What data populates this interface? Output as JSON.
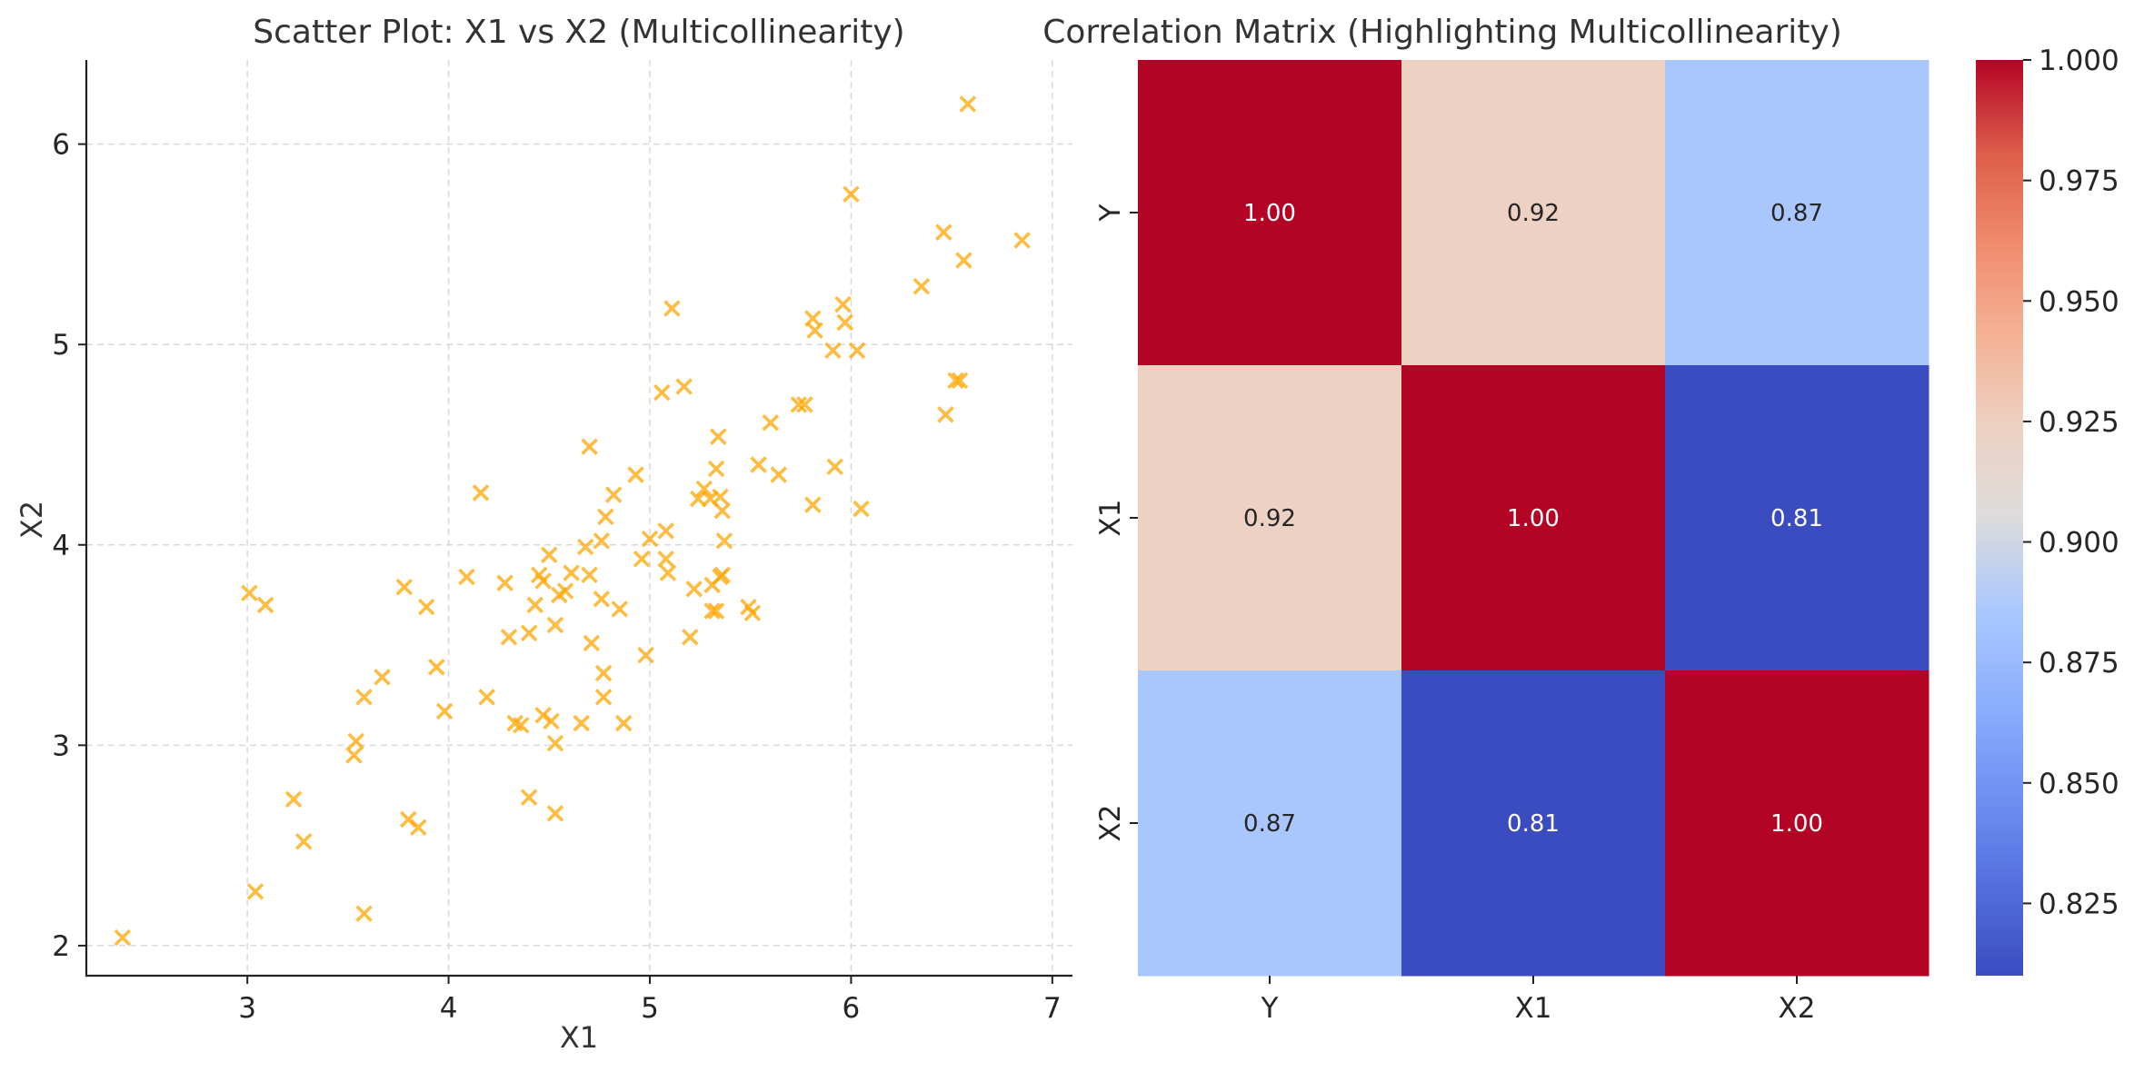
{
  "chart_data": [
    {
      "type": "scatter",
      "title": "Scatter Plot: X1 vs X2 (Multicollinearity)",
      "xlabel": "X1",
      "ylabel": "X2",
      "xlim": [
        2.2,
        7.1
      ],
      "ylim": [
        1.85,
        6.42
      ],
      "xticks": [
        3,
        4,
        5,
        6,
        7
      ],
      "yticks": [
        2,
        3,
        4,
        5,
        6
      ],
      "grid": true,
      "marker": "x",
      "color": "#FFA500",
      "points": [
        [
          2.38,
          2.04
        ],
        [
          3.04,
          2.27
        ],
        [
          3.58,
          2.16
        ],
        [
          3.23,
          2.73
        ],
        [
          3.28,
          2.52
        ],
        [
          3.53,
          2.95
        ],
        [
          3.54,
          3.02
        ],
        [
          3.58,
          3.24
        ],
        [
          3.67,
          3.34
        ],
        [
          3.01,
          3.76
        ],
        [
          3.09,
          3.7
        ],
        [
          3.78,
          3.79
        ],
        [
          3.8,
          2.63
        ],
        [
          3.85,
          2.59
        ],
        [
          3.89,
          3.69
        ],
        [
          3.94,
          3.39
        ],
        [
          3.98,
          3.17
        ],
        [
          4.09,
          3.84
        ],
        [
          4.16,
          4.26
        ],
        [
          4.19,
          3.24
        ],
        [
          4.28,
          3.81
        ],
        [
          4.3,
          3.54
        ],
        [
          4.33,
          3.11
        ],
        [
          4.36,
          3.1
        ],
        [
          4.4,
          3.56
        ],
        [
          4.4,
          2.74
        ],
        [
          4.43,
          3.7
        ],
        [
          4.45,
          3.85
        ],
        [
          4.47,
          3.15
        ],
        [
          4.47,
          3.82
        ],
        [
          4.5,
          3.95
        ],
        [
          4.51,
          3.12
        ],
        [
          4.53,
          3.6
        ],
        [
          4.53,
          2.66
        ],
        [
          4.53,
          3.01
        ],
        [
          4.55,
          3.75
        ],
        [
          4.58,
          3.77
        ],
        [
          4.61,
          3.86
        ],
        [
          4.66,
          3.11
        ],
        [
          4.68,
          3.99
        ],
        [
          4.7,
          4.49
        ],
        [
          4.7,
          3.85
        ],
        [
          4.71,
          3.51
        ],
        [
          4.76,
          4.02
        ],
        [
          4.76,
          3.73
        ],
        [
          4.77,
          3.36
        ],
        [
          4.77,
          3.24
        ],
        [
          4.78,
          4.14
        ],
        [
          4.82,
          4.25
        ],
        [
          4.85,
          3.68
        ],
        [
          4.87,
          3.11
        ],
        [
          4.93,
          4.35
        ],
        [
          4.96,
          3.93
        ],
        [
          4.98,
          3.45
        ],
        [
          5.0,
          4.03
        ],
        [
          5.06,
          4.76
        ],
        [
          5.08,
          4.07
        ],
        [
          5.08,
          3.93
        ],
        [
          5.09,
          3.86
        ],
        [
          5.11,
          5.18
        ],
        [
          5.17,
          4.79
        ],
        [
          5.2,
          3.54
        ],
        [
          5.22,
          3.78
        ],
        [
          5.24,
          4.23
        ],
        [
          5.27,
          4.28
        ],
        [
          5.3,
          4.23
        ],
        [
          5.31,
          3.8
        ],
        [
          5.31,
          3.67
        ],
        [
          5.33,
          3.67
        ],
        [
          5.33,
          4.38
        ],
        [
          5.34,
          4.54
        ],
        [
          5.35,
          3.84
        ],
        [
          5.35,
          4.24
        ],
        [
          5.36,
          3.85
        ],
        [
          5.36,
          4.17
        ],
        [
          5.37,
          4.02
        ],
        [
          5.49,
          3.69
        ],
        [
          5.51,
          3.66
        ],
        [
          5.54,
          4.4
        ],
        [
          5.6,
          4.61
        ],
        [
          5.64,
          4.35
        ],
        [
          5.74,
          4.7
        ],
        [
          5.77,
          4.7
        ],
        [
          5.81,
          5.13
        ],
        [
          5.81,
          4.2
        ],
        [
          5.82,
          5.07
        ],
        [
          5.91,
          4.97
        ],
        [
          5.92,
          4.39
        ],
        [
          5.96,
          5.2
        ],
        [
          5.97,
          5.11
        ],
        [
          6.0,
          5.75
        ],
        [
          6.03,
          4.97
        ],
        [
          6.05,
          4.18
        ],
        [
          6.35,
          5.29
        ],
        [
          6.46,
          5.56
        ],
        [
          6.47,
          4.65
        ],
        [
          6.52,
          4.82
        ],
        [
          6.54,
          4.82
        ],
        [
          6.56,
          5.42
        ],
        [
          6.58,
          6.2
        ],
        [
          6.85,
          5.52
        ]
      ]
    },
    {
      "type": "heatmap",
      "title": "Correlation Matrix (Highlighting Multicollinearity)",
      "rows": [
        "Y",
        "X1",
        "X2"
      ],
      "cols": [
        "Y",
        "X1",
        "X2"
      ],
      "values": [
        [
          1.0,
          0.92,
          0.87
        ],
        [
          0.92,
          1.0,
          0.81
        ],
        [
          0.87,
          0.81,
          1.0
        ]
      ],
      "value_labels": [
        [
          "1.00",
          "0.92",
          "0.87"
        ],
        [
          "0.92",
          "1.00",
          "0.81"
        ],
        [
          "0.87",
          "0.81",
          "1.00"
        ]
      ],
      "colormap": "coolwarm",
      "vmin": 0.81,
      "vmax": 1.0,
      "colorbar_ticks": [
        "0.825",
        "0.850",
        "0.875",
        "0.900",
        "0.925",
        "0.950",
        "0.975",
        "1.000"
      ],
      "colors": {
        "1.00": "#b40426",
        "0.92": "#edd1c2",
        "0.87": "#aac7fd",
        "0.81": "#3b4cc0"
      }
    }
  ]
}
